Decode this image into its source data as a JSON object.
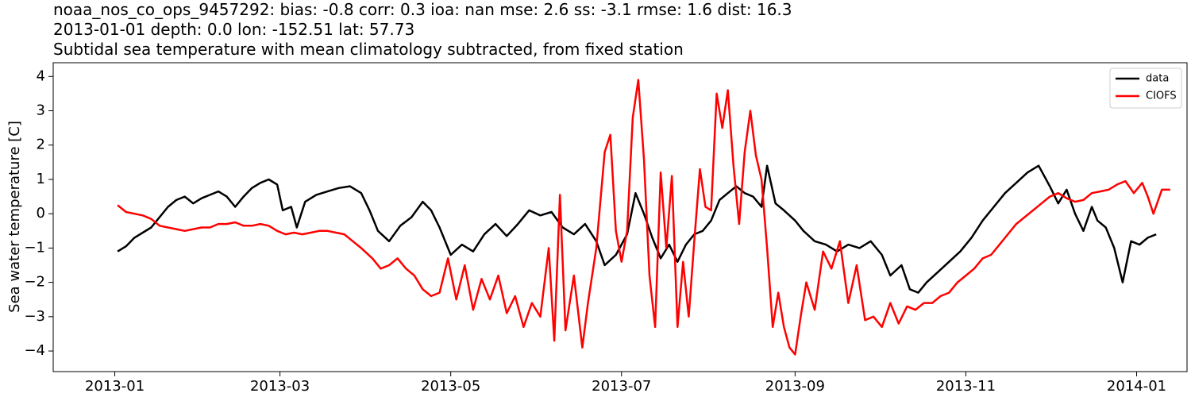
{
  "titles": [
    "noaa_nos_co_ops_9457292: bias: -0.8  corr: 0.3  ioa: nan  mse: 2.6  ss: -3.1  rmse: 1.6  dist: 16.3",
    "2013-01-01 depth: 0.0 lon: -152.51 lat: 57.73",
    "Subtidal sea temperature with mean climatology subtracted, from fixed station"
  ],
  "chart_data": {
    "type": "line",
    "title": "Subtidal sea temperature with mean climatology subtracted, from fixed station",
    "xlabel": "",
    "ylabel": "Sea water temperature [C]",
    "xlim": [
      "2012-12-10",
      "2014-01-19"
    ],
    "ylim": [
      -4.6,
      4.4
    ],
    "x_ticks": [
      "2013-01",
      "2013-03",
      "2013-05",
      "2013-07",
      "2013-09",
      "2013-11",
      "2014-01"
    ],
    "y_ticks": [
      -4,
      -3,
      -2,
      -1,
      0,
      1,
      2,
      3,
      4
    ],
    "grid": false,
    "legend_position": "top-right",
    "series": [
      {
        "name": "data",
        "color": "#000000",
        "points": [
          [
            "2013-01-02",
            -1.1
          ],
          [
            "2013-01-05",
            -0.95
          ],
          [
            "2013-01-08",
            -0.7
          ],
          [
            "2013-01-11",
            -0.55
          ],
          [
            "2013-01-14",
            -0.4
          ],
          [
            "2013-01-17",
            -0.1
          ],
          [
            "2013-01-20",
            0.2
          ],
          [
            "2013-01-23",
            0.4
          ],
          [
            "2013-01-26",
            0.5
          ],
          [
            "2013-01-29",
            0.3
          ],
          [
            "2013-02-01",
            0.45
          ],
          [
            "2013-02-04",
            0.55
          ],
          [
            "2013-02-07",
            0.65
          ],
          [
            "2013-02-10",
            0.5
          ],
          [
            "2013-02-13",
            0.2
          ],
          [
            "2013-02-16",
            0.5
          ],
          [
            "2013-02-19",
            0.75
          ],
          [
            "2013-02-22",
            0.9
          ],
          [
            "2013-02-25",
            1.0
          ],
          [
            "2013-02-28",
            0.85
          ],
          [
            "2013-03-02",
            0.1
          ],
          [
            "2013-03-05",
            0.2
          ],
          [
            "2013-03-07",
            -0.4
          ],
          [
            "2013-03-10",
            0.35
          ],
          [
            "2013-03-14",
            0.55
          ],
          [
            "2013-03-18",
            0.65
          ],
          [
            "2013-03-22",
            0.75
          ],
          [
            "2013-03-26",
            0.8
          ],
          [
            "2013-03-30",
            0.6
          ],
          [
            "2013-04-02",
            0.1
          ],
          [
            "2013-04-05",
            -0.5
          ],
          [
            "2013-04-09",
            -0.8
          ],
          [
            "2013-04-13",
            -0.35
          ],
          [
            "2013-04-17",
            -0.1
          ],
          [
            "2013-04-21",
            0.35
          ],
          [
            "2013-04-24",
            0.1
          ],
          [
            "2013-04-27",
            -0.4
          ],
          [
            "2013-05-01",
            -1.2
          ],
          [
            "2013-05-05",
            -0.9
          ],
          [
            "2013-05-09",
            -1.1
          ],
          [
            "2013-05-13",
            -0.6
          ],
          [
            "2013-05-17",
            -0.3
          ],
          [
            "2013-05-21",
            -0.65
          ],
          [
            "2013-05-25",
            -0.3
          ],
          [
            "2013-05-29",
            0.1
          ],
          [
            "2013-06-02",
            -0.05
          ],
          [
            "2013-06-06",
            0.05
          ],
          [
            "2013-06-10",
            -0.4
          ],
          [
            "2013-06-14",
            -0.6
          ],
          [
            "2013-06-18",
            -0.3
          ],
          [
            "2013-06-22",
            -0.8
          ],
          [
            "2013-06-25",
            -1.5
          ],
          [
            "2013-06-29",
            -1.2
          ],
          [
            "2013-07-03",
            -0.6
          ],
          [
            "2013-07-06",
            0.6
          ],
          [
            "2013-07-09",
            0.0
          ],
          [
            "2013-07-12",
            -0.7
          ],
          [
            "2013-07-15",
            -1.3
          ],
          [
            "2013-07-18",
            -0.9
          ],
          [
            "2013-07-21",
            -1.4
          ],
          [
            "2013-07-24",
            -0.9
          ],
          [
            "2013-07-27",
            -0.6
          ],
          [
            "2013-07-30",
            -0.5
          ],
          [
            "2013-08-02",
            -0.2
          ],
          [
            "2013-08-05",
            0.4
          ],
          [
            "2013-08-08",
            0.6
          ],
          [
            "2013-08-11",
            0.8
          ],
          [
            "2013-08-14",
            0.6
          ],
          [
            "2013-08-17",
            0.5
          ],
          [
            "2013-08-20",
            0.2
          ],
          [
            "2013-08-22",
            1.4
          ],
          [
            "2013-08-25",
            0.3
          ],
          [
            "2013-08-28",
            0.1
          ],
          [
            "2013-09-01",
            -0.2
          ],
          [
            "2013-09-04",
            -0.5
          ],
          [
            "2013-09-08",
            -0.8
          ],
          [
            "2013-09-12",
            -0.9
          ],
          [
            "2013-09-16",
            -1.1
          ],
          [
            "2013-09-20",
            -0.9
          ],
          [
            "2013-09-24",
            -1.0
          ],
          [
            "2013-09-28",
            -0.8
          ],
          [
            "2013-10-02",
            -1.2
          ],
          [
            "2013-10-05",
            -1.8
          ],
          [
            "2013-10-09",
            -1.5
          ],
          [
            "2013-10-12",
            -2.2
          ],
          [
            "2013-10-15",
            -2.3
          ],
          [
            "2013-10-18",
            -2.0
          ],
          [
            "2013-10-22",
            -1.7
          ],
          [
            "2013-10-26",
            -1.4
          ],
          [
            "2013-10-30",
            -1.1
          ],
          [
            "2013-11-03",
            -0.7
          ],
          [
            "2013-11-07",
            -0.2
          ],
          [
            "2013-11-11",
            0.2
          ],
          [
            "2013-11-15",
            0.6
          ],
          [
            "2013-11-19",
            0.9
          ],
          [
            "2013-11-23",
            1.2
          ],
          [
            "2013-11-27",
            1.4
          ],
          [
            "2013-12-01",
            0.8
          ],
          [
            "2013-12-04",
            0.3
          ],
          [
            "2013-12-07",
            0.7
          ],
          [
            "2013-12-10",
            0.0
          ],
          [
            "2013-12-13",
            -0.5
          ],
          [
            "2013-12-16",
            0.2
          ],
          [
            "2013-12-18",
            -0.2
          ],
          [
            "2013-12-21",
            -0.4
          ],
          [
            "2013-12-24",
            -1.0
          ],
          [
            "2013-12-27",
            -2.0
          ],
          [
            "2013-12-30",
            -0.8
          ],
          [
            "2014-01-02",
            -0.9
          ],
          [
            "2014-01-05",
            -0.7
          ],
          [
            "2014-01-08",
            -0.6
          ]
        ]
      },
      {
        "name": "CIOFS",
        "color": "#ff0000",
        "points": [
          [
            "2013-01-02",
            0.25
          ],
          [
            "2013-01-05",
            0.05
          ],
          [
            "2013-01-08",
            0.0
          ],
          [
            "2013-01-11",
            -0.05
          ],
          [
            "2013-01-14",
            -0.15
          ],
          [
            "2013-01-17",
            -0.35
          ],
          [
            "2013-01-20",
            -0.4
          ],
          [
            "2013-01-23",
            -0.45
          ],
          [
            "2013-01-26",
            -0.5
          ],
          [
            "2013-01-29",
            -0.45
          ],
          [
            "2013-02-01",
            -0.4
          ],
          [
            "2013-02-04",
            -0.4
          ],
          [
            "2013-02-07",
            -0.3
          ],
          [
            "2013-02-10",
            -0.3
          ],
          [
            "2013-02-13",
            -0.25
          ],
          [
            "2013-02-16",
            -0.35
          ],
          [
            "2013-02-19",
            -0.35
          ],
          [
            "2013-02-22",
            -0.3
          ],
          [
            "2013-02-25",
            -0.35
          ],
          [
            "2013-02-28",
            -0.5
          ],
          [
            "2013-03-03",
            -0.6
          ],
          [
            "2013-03-06",
            -0.55
          ],
          [
            "2013-03-09",
            -0.6
          ],
          [
            "2013-03-12",
            -0.55
          ],
          [
            "2013-03-15",
            -0.5
          ],
          [
            "2013-03-18",
            -0.5
          ],
          [
            "2013-03-21",
            -0.55
          ],
          [
            "2013-03-24",
            -0.6
          ],
          [
            "2013-03-27",
            -0.8
          ],
          [
            "2013-03-30",
            -1.0
          ],
          [
            "2013-04-03",
            -1.3
          ],
          [
            "2013-04-06",
            -1.6
          ],
          [
            "2013-04-09",
            -1.5
          ],
          [
            "2013-04-12",
            -1.3
          ],
          [
            "2013-04-15",
            -1.6
          ],
          [
            "2013-04-18",
            -1.8
          ],
          [
            "2013-04-21",
            -2.2
          ],
          [
            "2013-04-24",
            -2.4
          ],
          [
            "2013-04-27",
            -2.3
          ],
          [
            "2013-04-30",
            -1.3
          ],
          [
            "2013-05-03",
            -2.5
          ],
          [
            "2013-05-06",
            -1.5
          ],
          [
            "2013-05-09",
            -2.8
          ],
          [
            "2013-05-12",
            -1.9
          ],
          [
            "2013-05-15",
            -2.5
          ],
          [
            "2013-05-18",
            -1.8
          ],
          [
            "2013-05-21",
            -2.9
          ],
          [
            "2013-05-24",
            -2.4
          ],
          [
            "2013-05-27",
            -3.3
          ],
          [
            "2013-05-30",
            -2.6
          ],
          [
            "2013-06-02",
            -3.0
          ],
          [
            "2013-06-05",
            -1.0
          ],
          [
            "2013-06-07",
            -3.7
          ],
          [
            "2013-06-09",
            0.55
          ],
          [
            "2013-06-11",
            -3.4
          ],
          [
            "2013-06-14",
            -1.8
          ],
          [
            "2013-06-17",
            -3.9
          ],
          [
            "2013-06-19",
            -2.6
          ],
          [
            "2013-06-22",
            -1.0
          ],
          [
            "2013-06-25",
            1.8
          ],
          [
            "2013-06-27",
            2.3
          ],
          [
            "2013-06-29",
            -0.5
          ],
          [
            "2013-07-01",
            -1.4
          ],
          [
            "2013-07-03",
            -0.5
          ],
          [
            "2013-07-05",
            2.8
          ],
          [
            "2013-07-07",
            3.9
          ],
          [
            "2013-07-09",
            1.6
          ],
          [
            "2013-07-11",
            -1.8
          ],
          [
            "2013-07-13",
            -3.3
          ],
          [
            "2013-07-15",
            1.2
          ],
          [
            "2013-07-17",
            -1.0
          ],
          [
            "2013-07-19",
            1.1
          ],
          [
            "2013-07-21",
            -3.3
          ],
          [
            "2013-07-23",
            -1.4
          ],
          [
            "2013-07-25",
            -3.0
          ],
          [
            "2013-07-27",
            -0.8
          ],
          [
            "2013-07-29",
            1.3
          ],
          [
            "2013-07-31",
            0.2
          ],
          [
            "2013-08-02",
            0.1
          ],
          [
            "2013-08-04",
            3.5
          ],
          [
            "2013-08-06",
            2.5
          ],
          [
            "2013-08-08",
            3.6
          ],
          [
            "2013-08-10",
            1.4
          ],
          [
            "2013-08-12",
            -0.3
          ],
          [
            "2013-08-14",
            1.8
          ],
          [
            "2013-08-16",
            3.0
          ],
          [
            "2013-08-18",
            1.7
          ],
          [
            "2013-08-20",
            1.0
          ],
          [
            "2013-08-22",
            -1.0
          ],
          [
            "2013-08-24",
            -3.3
          ],
          [
            "2013-08-26",
            -2.3
          ],
          [
            "2013-08-28",
            -3.3
          ],
          [
            "2013-08-30",
            -3.9
          ],
          [
            "2013-09-01",
            -4.1
          ],
          [
            "2013-09-03",
            -3.0
          ],
          [
            "2013-09-05",
            -2.0
          ],
          [
            "2013-09-08",
            -2.8
          ],
          [
            "2013-09-11",
            -1.1
          ],
          [
            "2013-09-14",
            -1.6
          ],
          [
            "2013-09-17",
            -0.8
          ],
          [
            "2013-09-20",
            -2.6
          ],
          [
            "2013-09-23",
            -1.5
          ],
          [
            "2013-09-26",
            -3.1
          ],
          [
            "2013-09-29",
            -3.0
          ],
          [
            "2013-10-02",
            -3.3
          ],
          [
            "2013-10-05",
            -2.6
          ],
          [
            "2013-10-08",
            -3.2
          ],
          [
            "2013-10-11",
            -2.7
          ],
          [
            "2013-10-14",
            -2.8
          ],
          [
            "2013-10-17",
            -2.6
          ],
          [
            "2013-10-20",
            -2.6
          ],
          [
            "2013-10-23",
            -2.4
          ],
          [
            "2013-10-26",
            -2.3
          ],
          [
            "2013-10-29",
            -2.0
          ],
          [
            "2013-11-01",
            -1.8
          ],
          [
            "2013-11-04",
            -1.6
          ],
          [
            "2013-11-07",
            -1.3
          ],
          [
            "2013-11-10",
            -1.2
          ],
          [
            "2013-11-13",
            -0.9
          ],
          [
            "2013-11-16",
            -0.6
          ],
          [
            "2013-11-19",
            -0.3
          ],
          [
            "2013-11-22",
            -0.1
          ],
          [
            "2013-11-25",
            0.1
          ],
          [
            "2013-11-28",
            0.3
          ],
          [
            "2013-12-01",
            0.5
          ],
          [
            "2013-12-04",
            0.6
          ],
          [
            "2013-12-07",
            0.45
          ],
          [
            "2013-12-10",
            0.35
          ],
          [
            "2013-12-13",
            0.4
          ],
          [
            "2013-12-16",
            0.6
          ],
          [
            "2013-12-19",
            0.65
          ],
          [
            "2013-12-22",
            0.7
          ],
          [
            "2013-12-25",
            0.85
          ],
          [
            "2013-12-28",
            0.95
          ],
          [
            "2013-12-31",
            0.6
          ],
          [
            "2014-01-03",
            0.9
          ],
          [
            "2014-01-05",
            0.5
          ],
          [
            "2014-01-07",
            0.0
          ],
          [
            "2014-01-10",
            0.7
          ],
          [
            "2014-01-13",
            0.7
          ]
        ]
      }
    ]
  }
}
